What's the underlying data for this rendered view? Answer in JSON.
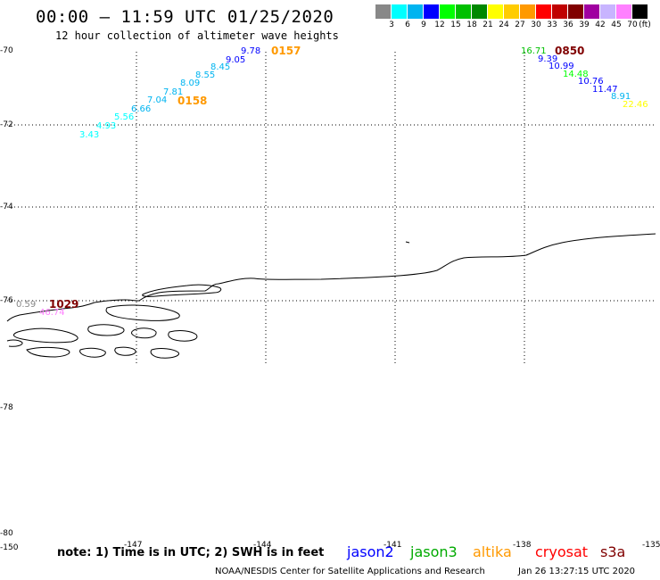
{
  "header": {
    "title": "00:00 – 11:59 UTC 01/25/2020",
    "subtitle": "12 hour collection of altimeter wave heights"
  },
  "color_scale": {
    "bins": [
      {
        "label": "3",
        "color": "#888888"
      },
      {
        "label": "6",
        "color": "#00ffff"
      },
      {
        "label": "9",
        "color": "#00b4f0"
      },
      {
        "label": "12",
        "color": "#0000ff"
      },
      {
        "label": "15",
        "color": "#00ff00"
      },
      {
        "label": "18",
        "color": "#00c000"
      },
      {
        "label": "21",
        "color": "#008800"
      },
      {
        "label": "24",
        "color": "#ffff00"
      },
      {
        "label": "27",
        "color": "#ffcc00"
      },
      {
        "label": "30",
        "color": "#ff9900"
      },
      {
        "label": "33",
        "color": "#ff0000"
      },
      {
        "label": "36",
        "color": "#c00000"
      },
      {
        "label": "39",
        "color": "#800000"
      },
      {
        "label": "42",
        "color": "#a000a0"
      },
      {
        "label": "45",
        "color": "#c8b4ff"
      },
      {
        "label": "70",
        "color": "#ff80ff"
      },
      {
        "label": "",
        "color": "#000000"
      }
    ],
    "unit": "(ft)"
  },
  "axes": {
    "lat_labels": [
      "-70",
      "-72",
      "-74",
      "-76",
      "-78",
      "-80"
    ],
    "lon_labels": [
      "-150",
      "-147",
      "-144",
      "-141",
      "-138",
      "-135"
    ]
  },
  "tracks": [
    {
      "time_label": "0157",
      "time_color": "#ff9900",
      "points": [
        {
          "v": "9.78",
          "color": "#0000ff"
        },
        {
          "v": "9.05",
          "color": "#0000ff"
        },
        {
          "v": "8.45",
          "color": "#00b4f0"
        },
        {
          "v": "8.55",
          "color": "#00b4f0"
        },
        {
          "v": "8.09",
          "color": "#00b4f0"
        },
        {
          "v": "7.81",
          "color": "#00b4f0"
        },
        {
          "v": "7.04",
          "color": "#00b4f0"
        }
      ]
    },
    {
      "time_label": "0158",
      "time_color": "#ff9900",
      "points": [
        {
          "v": "6.66",
          "color": "#00b4f0"
        },
        {
          "v": "5.56",
          "color": "#00ffff"
        },
        {
          "v": "4.93",
          "color": "#00ffff"
        },
        {
          "v": "3.43",
          "color": "#00ffff"
        }
      ]
    },
    {
      "time_label": "0850",
      "time_color": "#800000",
      "points": [
        {
          "v": "16.71",
          "color": "#00c000"
        },
        {
          "v": "9.39",
          "color": "#0000ff"
        },
        {
          "v": "10.99",
          "color": "#0000ff"
        },
        {
          "v": "14.48",
          "color": "#00ff00"
        },
        {
          "v": "10.76",
          "color": "#0000ff"
        },
        {
          "v": "11.47",
          "color": "#0000ff"
        },
        {
          "v": "8.91",
          "color": "#00b4f0"
        },
        {
          "v": "22.46",
          "color": "#ffff00"
        }
      ]
    },
    {
      "time_label": "1029",
      "time_color": "#800000",
      "points": [
        {
          "v": "0.59",
          "color": "#888888"
        },
        {
          "v": "46.74",
          "color": "#ff80ff"
        }
      ]
    }
  ],
  "footer": {
    "note": "note: 1) Time is in UTC; 2) SWH is in feet",
    "satellites": [
      {
        "name": "jason2",
        "color": "#0000ff"
      },
      {
        "name": "jason3",
        "color": "#00aa00"
      },
      {
        "name": "altika",
        "color": "#ff9900"
      },
      {
        "name": "cryosat",
        "color": "#ff0000"
      },
      {
        "name": "s3a",
        "color": "#800000"
      }
    ],
    "credit": "NOAA/NESDIS Center for Satellite Applications and Research",
    "timestamp": "Jan 26 13:27:15 UTC 2020"
  }
}
